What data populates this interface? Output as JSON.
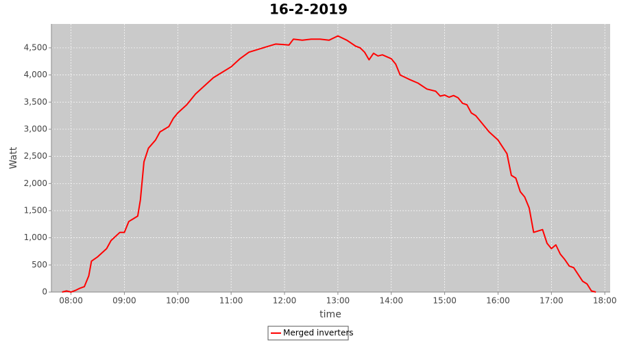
{
  "chart_data": {
    "type": "line",
    "title": "16-2-2019",
    "x_label": "time",
    "y_label": "Watt",
    "xlim": [
      "07:38",
      "18:06"
    ],
    "xticks": [
      "08:00",
      "09:00",
      "10:00",
      "11:00",
      "12:00",
      "13:00",
      "14:00",
      "15:00",
      "16:00",
      "17:00",
      "18:00"
    ],
    "ylim": [
      0,
      4940
    ],
    "yticks": [
      0,
      500,
      {
        "value": 1000,
        "label": "1,000"
      },
      {
        "value": 1500,
        "label": "1,500"
      },
      {
        "value": 2000,
        "label": "2,000"
      },
      {
        "value": 2500,
        "label": "2,500"
      },
      {
        "value": 3000,
        "label": "3,000"
      },
      {
        "value": 3500,
        "label": "3,500"
      },
      {
        "value": 4000,
        "label": "4,000"
      },
      {
        "value": 4500,
        "label": "4,500"
      }
    ],
    "grid": true,
    "legend": "bottom",
    "x": [
      "07:50",
      "07:55",
      "08:00",
      "08:05",
      "08:10",
      "08:15",
      "08:20",
      "08:23",
      "08:30",
      "08:40",
      "08:45",
      "08:55",
      "09:00",
      "09:05",
      "09:10",
      "09:15",
      "09:18",
      "09:22",
      "09:27",
      "09:35",
      "09:40",
      "09:50",
      "09:55",
      "10:00",
      "10:10",
      "10:20",
      "10:30",
      "10:40",
      "10:50",
      "11:00",
      "11:10",
      "11:20",
      "11:30",
      "11:40",
      "11:50",
      "12:00",
      "12:05",
      "12:10",
      "12:20",
      "12:30",
      "12:40",
      "12:50",
      "13:00",
      "13:10",
      "13:20",
      "13:25",
      "13:30",
      "13:35",
      "13:40",
      "13:45",
      "13:50",
      "14:00",
      "14:05",
      "14:10",
      "14:20",
      "14:30",
      "14:40",
      "14:50",
      "14:55",
      "15:00",
      "15:05",
      "15:10",
      "15:15",
      "15:20",
      "15:25",
      "15:30",
      "15:35",
      "15:40",
      "15:50",
      "16:00",
      "16:10",
      "16:15",
      "16:20",
      "16:25",
      "16:30",
      "16:35",
      "16:40",
      "16:50",
      "16:55",
      "17:00",
      "17:05",
      "17:10",
      "17:15",
      "17:20",
      "17:25",
      "17:35",
      "17:40",
      "17:45",
      "17:50"
    ],
    "series": [
      {
        "name": "Merged inverters",
        "color": "#ff0000",
        "values": [
          0,
          20,
          0,
          30,
          70,
          100,
          300,
          570,
          650,
          800,
          950,
          1100,
          1100,
          1300,
          1350,
          1400,
          1700,
          2400,
          2650,
          2800,
          2950,
          3050,
          3200,
          3300,
          3450,
          3650,
          3800,
          3950,
          4050,
          4150,
          4300,
          4420,
          4470,
          4520,
          4570,
          4560,
          4550,
          4660,
          4640,
          4660,
          4660,
          4640,
          4720,
          4640,
          4530,
          4500,
          4420,
          4280,
          4400,
          4350,
          4370,
          4300,
          4200,
          4000,
          3920,
          3850,
          3740,
          3700,
          3610,
          3630,
          3590,
          3620,
          3580,
          3480,
          3450,
          3300,
          3250,
          3150,
          2950,
          2800,
          2550,
          2150,
          2100,
          1850,
          1750,
          1550,
          1100,
          1150,
          900,
          800,
          870,
          700,
          600,
          480,
          450,
          200,
          150,
          20,
          0
        ]
      }
    ]
  }
}
